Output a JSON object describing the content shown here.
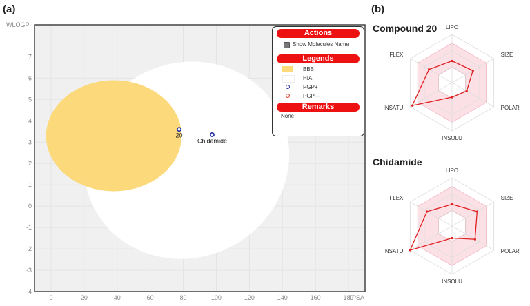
{
  "panels": {
    "a": "(a)",
    "b": "(b)"
  },
  "chart_data": [
    {
      "type": "scatter",
      "name": "boiled-egg",
      "xlabel": "TPSA",
      "ylabel": "WLOGP",
      "xlim": [
        -10,
        190
      ],
      "ylim": [
        -4,
        8.5
      ],
      "xticks": [
        0,
        20,
        40,
        60,
        80,
        100,
        120,
        140,
        160,
        180
      ],
      "yticks": [
        -4,
        -3,
        -2,
        -1,
        0,
        1,
        2,
        3,
        4,
        5,
        6,
        7
      ],
      "grid": true,
      "regions": [
        {
          "name": "HIA",
          "color": "#ffffff"
        },
        {
          "name": "BBB",
          "color": "#fcd97a"
        }
      ],
      "points": [
        {
          "label": "20",
          "x": 77.5,
          "y": 3.6,
          "class": "PGP+"
        },
        {
          "label": "Chidamide",
          "x": 97.5,
          "y": 3.35,
          "class": "PGP+"
        }
      ],
      "legend": {
        "actions_title": "Actions",
        "show_names_label": "Show Molecules Name",
        "legends_title": "Legends",
        "items": [
          {
            "label": "BBB",
            "color": "#fcd97a",
            "kind": "swatch"
          },
          {
            "label": "HIA",
            "color": "#ffffff",
            "kind": "swatch"
          },
          {
            "label": "PGP+",
            "color": "#1a2aa0",
            "kind": "ring"
          },
          {
            "label": "PGP—",
            "color": "#e03020",
            "kind": "ring"
          }
        ],
        "remarks_title": "Remarks",
        "remarks_text": "None",
        "header_color": "#ee1111"
      }
    },
    {
      "type": "radar",
      "title": "Compound 20",
      "axes": [
        "LIPO",
        "SIZE",
        "POLAR",
        "INSOLU",
        "INSATU",
        "FLEX"
      ],
      "values": [
        0.45,
        0.5,
        0.35,
        0.3,
        0.95,
        0.55
      ]
    },
    {
      "type": "radar",
      "title": "Chidamide",
      "axes": [
        "LIPO",
        "SIZE",
        "POLAR",
        "INSOLU",
        "NSATU",
        "FLEX"
      ],
      "values": [
        0.45,
        0.6,
        0.55,
        0.25,
        1.0,
        0.6
      ]
    }
  ]
}
